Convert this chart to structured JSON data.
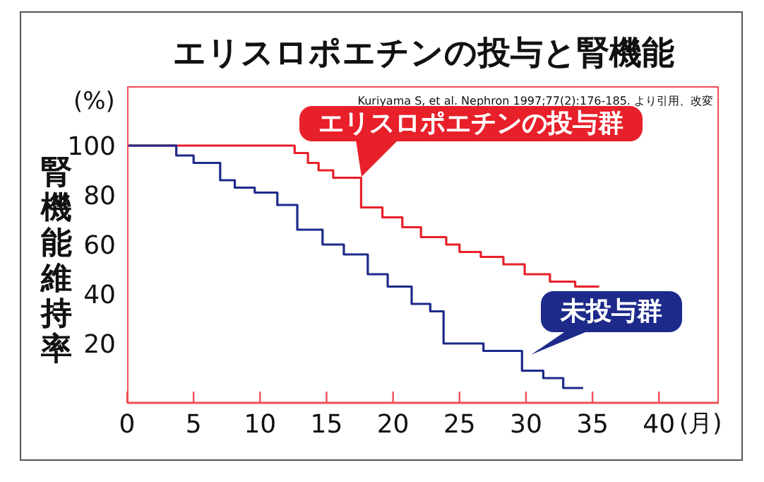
{
  "chart_data": {
    "type": "step",
    "title": "エリスロポエチンの投与と腎機能",
    "xlabel": "(月)",
    "ylabel": "腎機能維持率",
    "annotations": [
      "(%)",
      "Kuriyama S, et al. Nephron 1997;77(2):176-185. より引用、改変"
    ],
    "xlim": [
      0,
      44.5
    ],
    "xticks": [
      0,
      5,
      10,
      15,
      20,
      25,
      30,
      35,
      40
    ],
    "ylim": [
      -4,
      124
    ],
    "yticks": [
      20,
      40,
      60,
      80,
      100
    ],
    "grid": false,
    "legend": false,
    "marker": "none",
    "line_style": "solid",
    "series": [
      {
        "name": "エリスロポエチンの投与群",
        "color": "#e8202a",
        "x": [
          0,
          12.6,
          13.6,
          14.4,
          15.5,
          17.6,
          19.2,
          20.7,
          22.1,
          24.0,
          25.0,
          26.6,
          28.3,
          29.9,
          31.8,
          33.7,
          35.5
        ],
        "values": [
          100,
          97,
          93,
          90,
          87,
          75,
          71,
          67,
          63,
          60,
          57,
          55,
          52,
          48,
          45,
          43,
          43
        ]
      },
      {
        "name": "未投与群",
        "color": "#1d2a8a",
        "x": [
          0,
          3.7,
          5.0,
          7.0,
          8.1,
          9.6,
          11.3,
          12.8,
          14.7,
          16.3,
          18.1,
          19.6,
          21.4,
          22.8,
          23.8,
          26.8,
          29.7,
          31.3,
          32.8,
          34.3
        ],
        "values": [
          100,
          96,
          93,
          86,
          83,
          81,
          76,
          66,
          60,
          56,
          48,
          43,
          36,
          33,
          20,
          17,
          9,
          6,
          2,
          2
        ]
      }
    ]
  }
}
